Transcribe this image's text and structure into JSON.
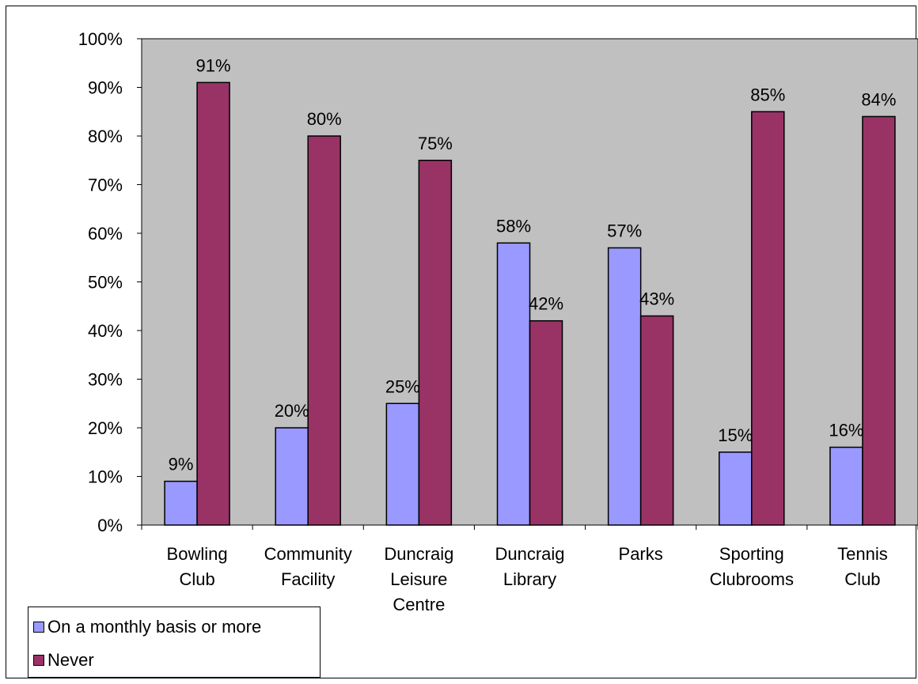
{
  "colors": {
    "plot_area": "#C0C0C0",
    "series1": "#9999FF",
    "series2": "#993366"
  },
  "chart_data": {
    "type": "bar",
    "categories": [
      [
        "Bowling",
        "Club"
      ],
      [
        "Community",
        "Facility"
      ],
      [
        "Duncraig",
        "Leisure",
        "Centre"
      ],
      [
        "Duncraig",
        "Library"
      ],
      [
        "Parks"
      ],
      [
        "Sporting",
        "Clubrooms"
      ],
      [
        "Tennis",
        "Club"
      ]
    ],
    "series": [
      {
        "name": "On a monthly basis or more",
        "values": [
          9,
          20,
          25,
          58,
          57,
          15,
          16
        ],
        "labels": [
          "9%",
          "20%",
          "25%",
          "58%",
          "57%",
          "15%",
          "16%"
        ]
      },
      {
        "name": "Never",
        "values": [
          91,
          80,
          75,
          42,
          43,
          85,
          84
        ],
        "labels": [
          "91%",
          "80%",
          "75%",
          "42%",
          "43%",
          "85%",
          "84%"
        ]
      }
    ],
    "ylim": [
      0,
      100
    ],
    "yticks": [
      "0%",
      "10%",
      "20%",
      "30%",
      "40%",
      "50%",
      "60%",
      "70%",
      "80%",
      "90%",
      "100%"
    ],
    "legend": "bottom-left",
    "grid": false
  }
}
